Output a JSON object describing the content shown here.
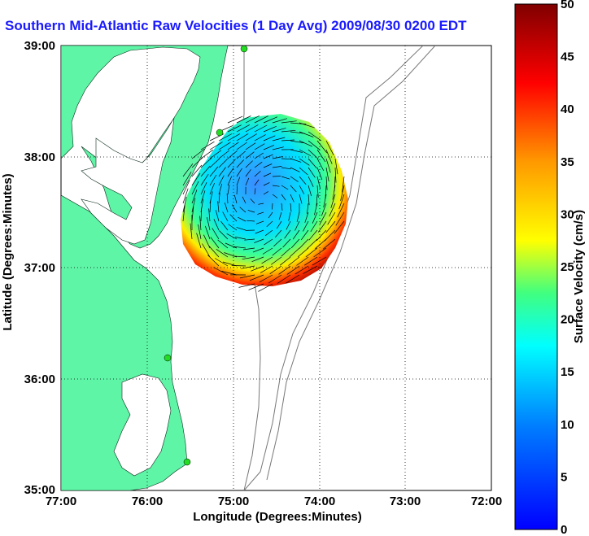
{
  "title": "Southern Mid-Atlantic Raw Velocities (1 Day Avg) 2009/08/30 0200 EDT",
  "axes": {
    "xlabel": "Longitude (Degrees:Minutes)",
    "ylabel": "Latitude (Degrees:Minutes)",
    "xticks": [
      "77:00",
      "76:00",
      "75:00",
      "74:00",
      "73:00",
      "72:00"
    ],
    "yticks": [
      "39:00",
      "38:00",
      "37:00",
      "36:00",
      "35:00"
    ]
  },
  "colorbar": {
    "label": "Surface Velocity (cm/s)",
    "ticks": [
      "50",
      "45",
      "40",
      "35",
      "30",
      "25",
      "20",
      "15",
      "10",
      "5",
      "0"
    ],
    "min": 0,
    "max": 50
  },
  "colors": {
    "land": "#5ff5a7",
    "water": "#ffffff",
    "title": "#1a1aff",
    "station": "#22dd22"
  }
}
